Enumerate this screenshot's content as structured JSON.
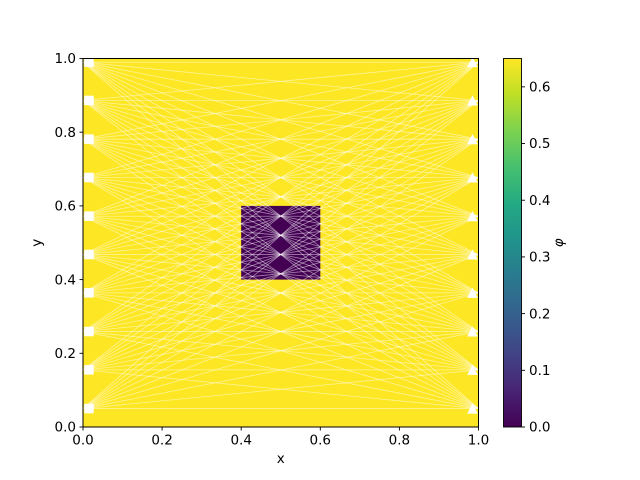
{
  "chart_data": {
    "type": "heatmap",
    "subtype": "triangular-mesh-field-plot",
    "title": "",
    "xlabel": "x",
    "ylabel": "y",
    "xlim": [
      0,
      1
    ],
    "ylim": [
      0,
      1
    ],
    "x_ticks": [
      "0.0",
      "0.2",
      "0.4",
      "0.6",
      "0.8",
      "1.0"
    ],
    "y_ticks": [
      "0.0",
      "0.2",
      "0.4",
      "0.6",
      "0.8",
      "1.0"
    ],
    "grid": false,
    "field": {
      "background_value": 0.65,
      "low_region": {
        "x0": 0.4,
        "x1": 0.6,
        "y0": 0.4,
        "y1": 0.6,
        "value": 0.0
      }
    },
    "mesh": {
      "edge_style": "complete-bipartite-left-right",
      "edge_color": "#ffffff",
      "edge_opacity": 0.5,
      "left_node_x": 0.0,
      "right_node_x": 1.0,
      "left_nodes_y": [
        0.05,
        0.155,
        0.259,
        0.364,
        0.468,
        0.572,
        0.677,
        0.781,
        0.886,
        0.99
      ],
      "right_nodes_y": [
        0.05,
        0.155,
        0.259,
        0.364,
        0.468,
        0.572,
        0.677,
        0.781,
        0.886,
        0.99
      ],
      "left_marker": "square",
      "right_marker": "triangle-up",
      "marker_color": "#ffffff"
    },
    "colorbar": {
      "label": "φ",
      "vmin": 0.0,
      "vmax": 0.65,
      "ticks": [
        "0.0",
        "0.1",
        "0.2",
        "0.3",
        "0.4",
        "0.5",
        "0.6"
      ],
      "colormap": "viridis",
      "position": "right"
    },
    "colors": {
      "value_high": "#fde725",
      "value_low": "#440154",
      "axis": "#000000",
      "viridis_stops": [
        "#440154",
        "#482475",
        "#414487",
        "#355f8d",
        "#2a788e",
        "#21918c",
        "#22a884",
        "#44bf70",
        "#7ad151",
        "#bddf26",
        "#fde725"
      ]
    }
  }
}
